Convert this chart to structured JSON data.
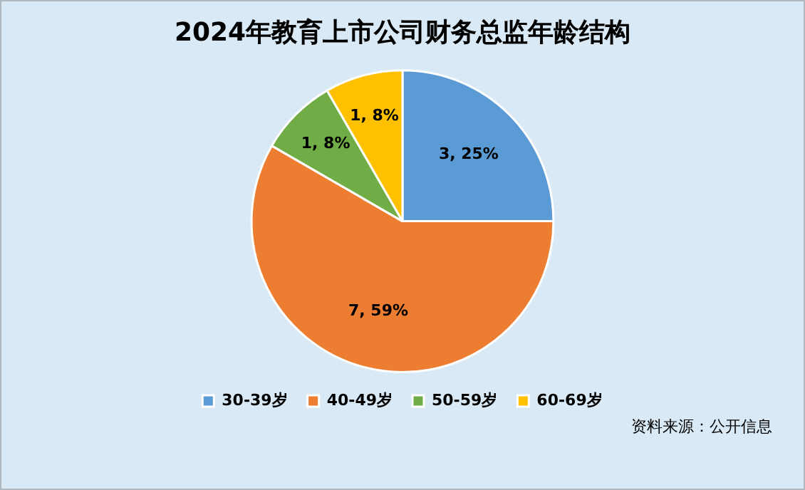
{
  "chart_data": {
    "type": "pie",
    "title": "2024年教育上市公司财务总监年龄结构",
    "categories": [
      "30-39岁",
      "40-49岁",
      "50-59岁",
      "60-69岁"
    ],
    "values": [
      3,
      7,
      1,
      1
    ],
    "colors": [
      "#5b9bd5",
      "#ed7d31",
      "#70ad47",
      "#ffc000"
    ],
    "value_labels": [
      "3, 25%",
      "7, 59%",
      "1, 8%",
      "1, 8%"
    ],
    "legend": "bottom",
    "annotations": [
      "资料来源：公开信息"
    ]
  }
}
